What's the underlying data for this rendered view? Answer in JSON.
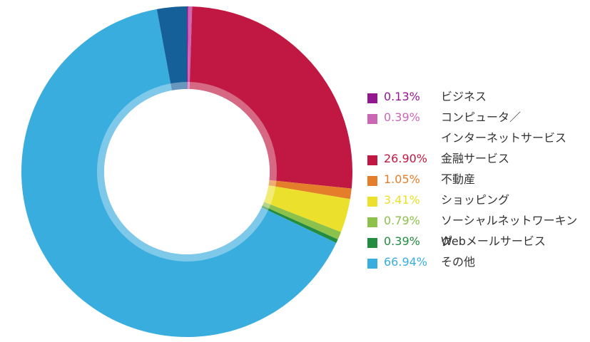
{
  "chart_data": {
    "type": "pie",
    "donut": true,
    "categories": [
      "ビジネス",
      "コンピュータ／インターネットサービス",
      "金融サービス",
      "不動産",
      "ショッピング",
      "ソーシャルネットワーキング",
      "Webメールサービス",
      "その他"
    ],
    "legend_lines": [
      [
        "ビジネス"
      ],
      [
        "コンピュータ／",
        "インターネットサービス"
      ],
      [
        "金融サービス"
      ],
      [
        "不動産"
      ],
      [
        "ショッピング"
      ],
      [
        "ソーシャルネットワーキング"
      ],
      [
        "Webメールサービス"
      ],
      [
        "その他"
      ]
    ],
    "values": [
      0.13,
      0.39,
      26.9,
      1.05,
      3.41,
      0.79,
      0.39,
      66.94
    ],
    "labels": [
      "0.13%",
      "0.39%",
      "26.90%",
      "1.05%",
      "3.41%",
      "0.79%",
      "0.39%",
      "66.94%"
    ],
    "colors": [
      "#93178f",
      "#cb67b4",
      "#c01842",
      "#e57e2b",
      "#ebe02c",
      "#8cc14b",
      "#238c3f",
      "#3aaddf"
    ],
    "extra_slice": {
      "value": 3.0,
      "color": "#16609a"
    },
    "legend_position": "right",
    "title": ""
  }
}
